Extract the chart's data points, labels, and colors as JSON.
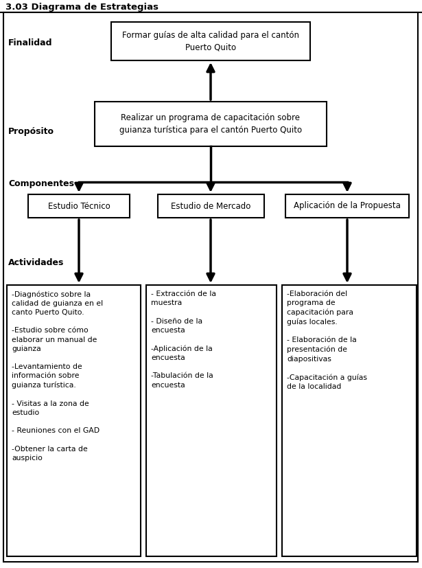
{
  "title": "3.03 Diagrama de Estrategias",
  "bg_color": "#ffffff",
  "label_finalidad": "Finalidad",
  "label_proposito": "Propósito",
  "label_componentes": "Componentes",
  "label_actividades": "Actividades",
  "box_finalidad": "Formar guías de alta calidad para el cantón\nPuerto Quito",
  "box_proposito": "Realizar un programa de capacitación sobre\nguianza turística para el cantón Puerto Quito",
  "box_comp1": "Estudio Técnico",
  "box_comp2": "Estudio de Mercado",
  "box_comp3": "Aplicación de la Propuesta",
  "box_act1": "-Diagnóstico sobre la\ncalidad de guianza en el\ncanto Puerto Quito.\n\n-Estudio sobre cómo\nelaborar un manual de\nguianza\n\n-Levantamiento de\ninformación sobre\nguianza turística.\n\n- Visitas a la zona de\nestudio\n\n- Reuniones con el GAD\n\n-Obtener la carta de\nauspicio",
  "box_act2": "- Extracción de la\nmuestra\n\n- Diseño de la\nencuesta\n\n-Aplicación de la\nencuesta\n\n-Tabulación de la\nencuesta",
  "box_act3": "-Elaboración del\nprograma de\ncapacitación para\nguías locales.\n\n- Elaboración de la\npresentación de\ndiapositivas\n\n-Capacitación a guías\nde la localidad"
}
